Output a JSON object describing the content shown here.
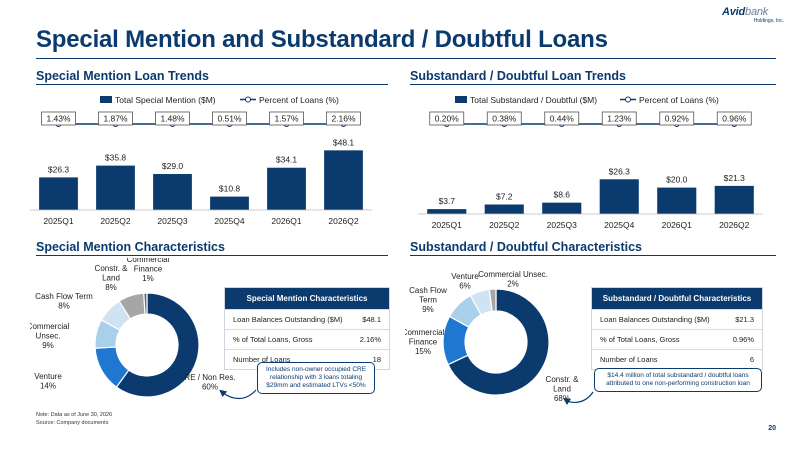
{
  "logo": {
    "main": "Avid",
    "main_sub": "bank",
    "tagline": "Holdings, Inc."
  },
  "title": "Special Mention and Substandard / Doubtful Loans",
  "sections": {
    "sm_trends": "Special Mention Loan Trends",
    "sd_trends": "Substandard / Doubtful Loan Trends",
    "sm_chars": "Special Mention Characteristics",
    "sd_chars": "Substandard / Doubtful Characteristics"
  },
  "colors": {
    "navy": "#0b3a6e",
    "blue": "#1f77d0",
    "light_blue": "#a9cfea",
    "pale_blue": "#cfe3f3",
    "gray": "#a6a6a6"
  },
  "chart_data": [
    {
      "id": "sm_bar",
      "type": "bar",
      "categories": [
        "2025Q1",
        "2025Q2",
        "2025Q3",
        "2025Q4",
        "2026Q1",
        "2026Q2"
      ],
      "series": [
        {
          "name": "Total Special Mention ($M)",
          "values": [
            26.3,
            35.8,
            29.0,
            10.8,
            34.1,
            48.1
          ],
          "labels": [
            "$26.3",
            "$35.8",
            "$29.0",
            "$10.8",
            "$34.1",
            "$48.1"
          ]
        },
        {
          "name": "Percent of Loans (%)",
          "type": "line",
          "values": [
            1.43,
            1.87,
            1.48,
            0.51,
            1.57,
            2.16
          ],
          "labels": [
            "1.43%",
            "1.87%",
            "1.48%",
            "0.51%",
            "1.57%",
            "2.16%"
          ]
        }
      ],
      "ylim": [
        0,
        50
      ]
    },
    {
      "id": "sd_bar",
      "type": "bar",
      "categories": [
        "2025Q1",
        "2025Q2",
        "2025Q3",
        "2025Q4",
        "2026Q1",
        "2026Q2"
      ],
      "series": [
        {
          "name": "Total Substandard / Doubtful ($M)",
          "values": [
            3.7,
            7.2,
            8.6,
            26.3,
            20.0,
            21.3
          ],
          "labels": [
            "$3.7",
            "$7.2",
            "$8.6",
            "$26.3",
            "$20.0",
            "$21.3"
          ]
        },
        {
          "name": "Percent of Loans (%)",
          "type": "line",
          "values": [
            0.2,
            0.38,
            0.44,
            1.23,
            0.92,
            0.96
          ],
          "labels": [
            "0.20%",
            "0.38%",
            "0.44%",
            "1.23%",
            "0.92%",
            "0.96%"
          ]
        }
      ],
      "ylim": [
        0,
        50
      ]
    },
    {
      "id": "sm_pie",
      "type": "pie",
      "labels": [
        "RE / Non Res.",
        "Venture",
        "Commercial Unsec.",
        "Cash Flow Term",
        "Constr. & Land",
        "Commercial Finance"
      ],
      "values": [
        60,
        14,
        9,
        8,
        8,
        1
      ],
      "colors": [
        "#0b3a6e",
        "#1f77d0",
        "#a9cfea",
        "#cfe3f3",
        "#a6a6a6",
        "#5b6f86"
      ]
    },
    {
      "id": "sd_pie",
      "type": "pie",
      "labels": [
        "Constr. & Land",
        "Commercial Finance",
        "Cash Flow Term",
        "Venture",
        "Commercial Unsec."
      ],
      "values": [
        68,
        15,
        9,
        6,
        2
      ],
      "colors": [
        "#0b3a6e",
        "#1f77d0",
        "#a9cfea",
        "#cfe3f3",
        "#a6a6a6"
      ]
    }
  ],
  "sm_table": {
    "header": "Special Mention Characteristics",
    "rows": [
      {
        "label": "Loan Balances Outstanding ($M)",
        "value": "$48.1"
      },
      {
        "label": "% of Total Loans, Gross",
        "value": "2.16%"
      },
      {
        "label": "Number of Loans",
        "value": "18"
      }
    ]
  },
  "sd_table": {
    "header": "Substandard / Doubtful Characteristics",
    "rows": [
      {
        "label": "Loan Balances Outstanding ($M)",
        "value": "$21.3"
      },
      {
        "label": "% of Total Loans, Gross",
        "value": "0.96%"
      },
      {
        "label": "Number of Loans",
        "value": "6"
      }
    ]
  },
  "sm_callout": "Includes non-owner occupied CRE relationship with 3 loans totaling $29mm and estimated LTVs <50%",
  "sd_callout": "$14.4 million of total substandard / doubtful loans attributed to one non-performing construction loan",
  "notes": {
    "line1": "Note: Data as of June 30, 2026",
    "line2": "Source: Company documents"
  },
  "page_number": "20"
}
